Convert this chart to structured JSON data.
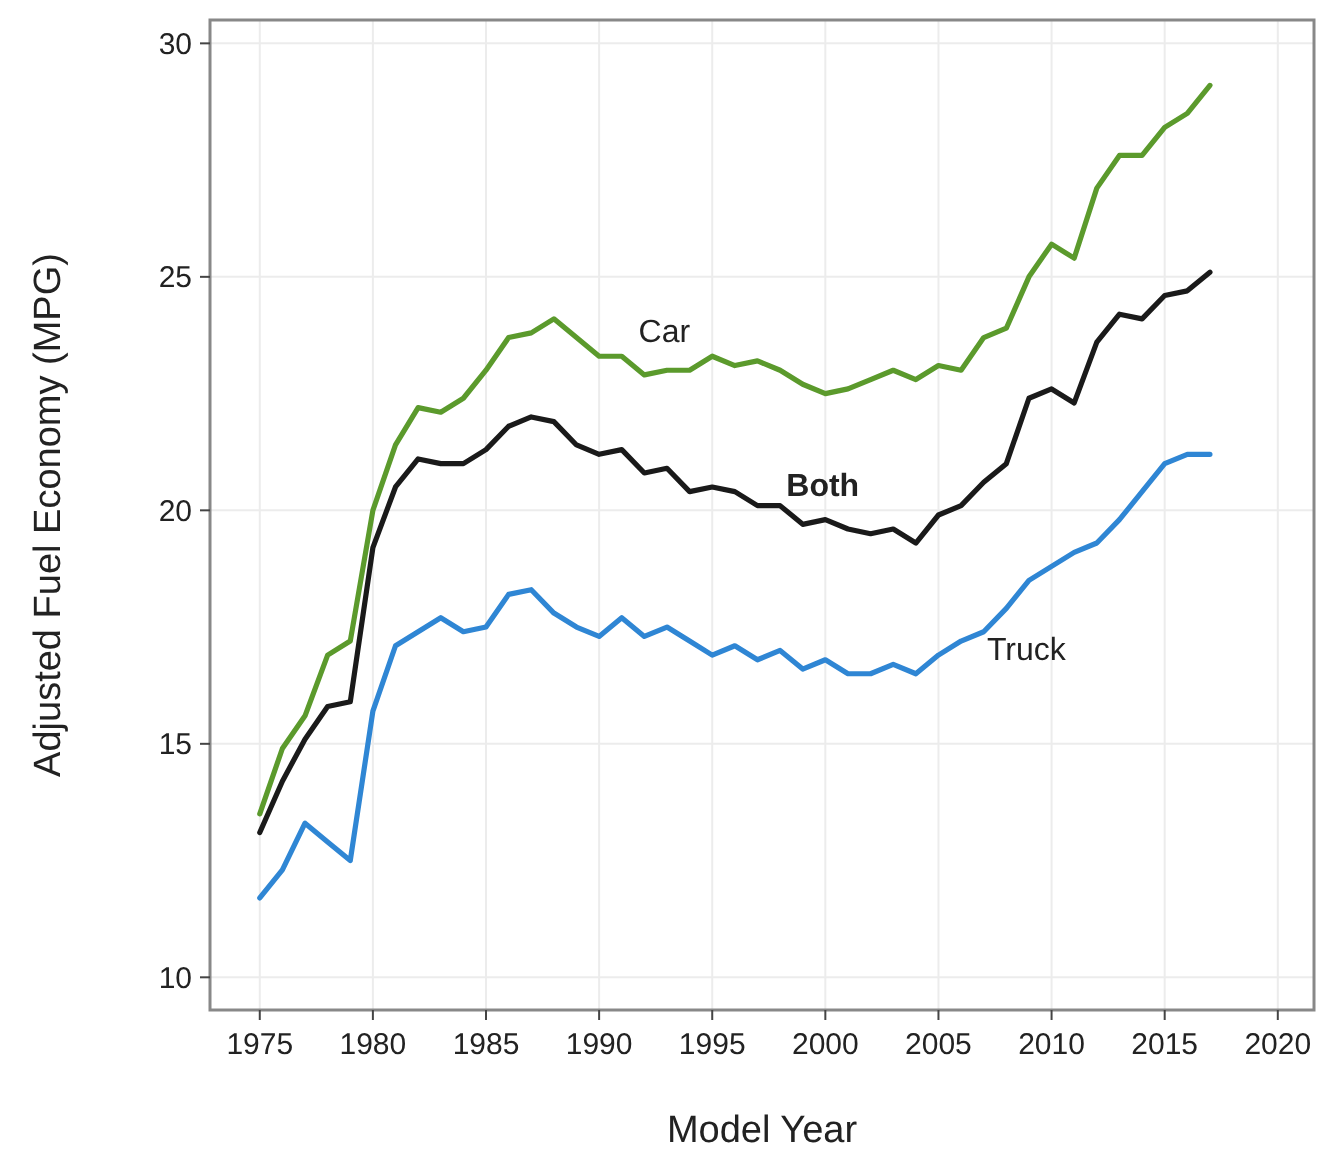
{
  "chart_data": {
    "type": "line",
    "xlabel": "Model Year",
    "ylabel": "Adjusted Fuel Economy (MPG)",
    "x": [
      1975,
      1976,
      1977,
      1978,
      1979,
      1980,
      1981,
      1982,
      1983,
      1984,
      1985,
      1986,
      1987,
      1988,
      1989,
      1990,
      1991,
      1992,
      1993,
      1994,
      1995,
      1996,
      1997,
      1998,
      1999,
      2000,
      2001,
      2002,
      2003,
      2004,
      2005,
      2006,
      2007,
      2008,
      2009,
      2010,
      2011,
      2012,
      2013,
      2014,
      2015,
      2016,
      2017
    ],
    "series": [
      {
        "name": "Car",
        "color": "#5b9a2c",
        "values": [
          13.5,
          14.9,
          15.6,
          16.9,
          17.2,
          20.0,
          21.4,
          22.2,
          22.1,
          22.4,
          23.0,
          23.7,
          23.8,
          24.1,
          23.7,
          23.3,
          23.3,
          22.9,
          23.0,
          23.0,
          23.3,
          23.1,
          23.2,
          23.0,
          22.7,
          22.5,
          22.6,
          22.8,
          23.0,
          22.8,
          23.1,
          23.0,
          23.7,
          23.9,
          25.0,
          25.7,
          25.4,
          26.9,
          27.6,
          27.6,
          28.2,
          28.5,
          29.1
        ]
      },
      {
        "name": "Both",
        "color": "#1a1a1a",
        "values": [
          13.1,
          14.2,
          15.1,
          15.8,
          15.9,
          19.2,
          20.5,
          21.1,
          21.0,
          21.0,
          21.3,
          21.8,
          22.0,
          21.9,
          21.4,
          21.2,
          21.3,
          20.8,
          20.9,
          20.4,
          20.5,
          20.4,
          20.1,
          20.1,
          19.7,
          19.8,
          19.6,
          19.5,
          19.6,
          19.3,
          19.9,
          20.1,
          20.6,
          21.0,
          22.4,
          22.6,
          22.3,
          23.6,
          24.2,
          24.1,
          24.6,
          24.7,
          25.1
        ]
      },
      {
        "name": "Truck",
        "color": "#2f86d4",
        "values": [
          11.7,
          12.3,
          13.3,
          12.9,
          12.5,
          15.7,
          17.1,
          17.4,
          17.7,
          17.4,
          17.5,
          18.2,
          18.3,
          17.8,
          17.5,
          17.3,
          17.7,
          17.3,
          17.5,
          17.2,
          16.9,
          17.1,
          16.8,
          17.0,
          16.6,
          16.8,
          16.5,
          16.5,
          16.7,
          16.5,
          16.9,
          17.2,
          17.4,
          17.9,
          18.5,
          18.8,
          19.1,
          19.3,
          19.8,
          20.4,
          21.0,
          21.2,
          21.2
        ]
      }
    ],
    "xlim": [
      1972.8,
      2021.6
    ],
    "xticks": [
      1975,
      1980,
      1985,
      1990,
      1995,
      2000,
      2005,
      2010,
      2015,
      2020
    ],
    "ylim": [
      9.3,
      30.5
    ],
    "yticks": [
      10,
      15,
      20,
      25,
      30
    ],
    "grid": true,
    "line_style": "solid",
    "marker": "none"
  }
}
